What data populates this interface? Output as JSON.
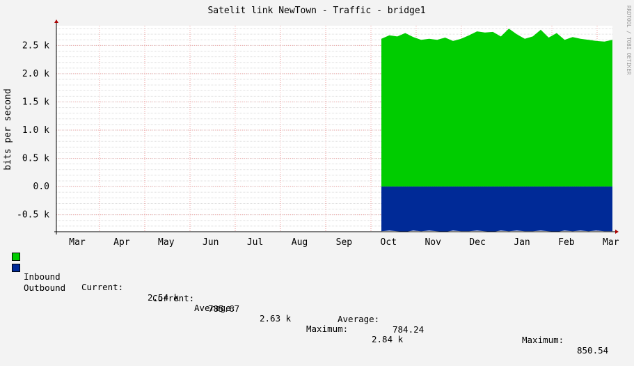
{
  "chart_data": {
    "type": "area",
    "title": "Satelit link NewTown - Traffic - bridge1",
    "ylabel": "bits per second",
    "side_label": "RRDTOOL / TOBI OETIKER",
    "ylim": [
      -0.8,
      2.85
    ],
    "y_unit": "k",
    "y_ticks": [
      -0.5,
      0.0,
      0.5,
      1.0,
      1.5,
      2.0,
      2.5
    ],
    "y_tick_labels": [
      "-0.5 k",
      "0.0",
      "0.5 k",
      "1.0 k",
      "1.5 k",
      "2.0 k",
      "2.5 k"
    ],
    "x_tick_labels": [
      "Mar",
      "Apr",
      "May",
      "Jun",
      "Jul",
      "Aug",
      "Sep",
      "Oct",
      "Nov",
      "Dec",
      "Jan",
      "Feb",
      "Mar"
    ],
    "grid": true,
    "data_start_month_index": 6.85,
    "series": [
      {
        "name": "Inbound",
        "color": "#00cc00",
        "values": [
          2.62,
          2.68,
          2.66,
          2.72,
          2.65,
          2.6,
          2.62,
          2.6,
          2.64,
          2.58,
          2.62,
          2.68,
          2.75,
          2.73,
          2.74,
          2.66,
          2.8,
          2.7,
          2.62,
          2.66,
          2.78,
          2.64,
          2.72,
          2.6,
          2.65,
          2.62,
          2.6,
          2.58,
          2.57,
          2.6
        ]
      },
      {
        "name": "Outbound",
        "color": "#002a97",
        "values": [
          -0.79,
          -0.78,
          -0.79,
          -0.8,
          -0.78,
          -0.79,
          -0.78,
          -0.79,
          -0.8,
          -0.78,
          -0.79,
          -0.79,
          -0.78,
          -0.79,
          -0.8,
          -0.78,
          -0.79,
          -0.78,
          -0.79,
          -0.79,
          -0.78,
          -0.79,
          -0.8,
          -0.78,
          -0.79,
          -0.78,
          -0.79,
          -0.78,
          -0.79,
          -0.79
        ]
      }
    ],
    "legend": [
      {
        "name": "Inbound",
        "current_label": "Current:",
        "current": "2.54 k",
        "average_label": "Average:",
        "average": "2.63 k",
        "maximum_label": "Maximum:",
        "maximum": "2.84 k"
      },
      {
        "name": "Outbound",
        "current_label": "Current:",
        "current": "785.67",
        "average_label": "Average:",
        "average": "784.24",
        "maximum_label": "Maximum:",
        "maximum": "850.54"
      }
    ]
  }
}
